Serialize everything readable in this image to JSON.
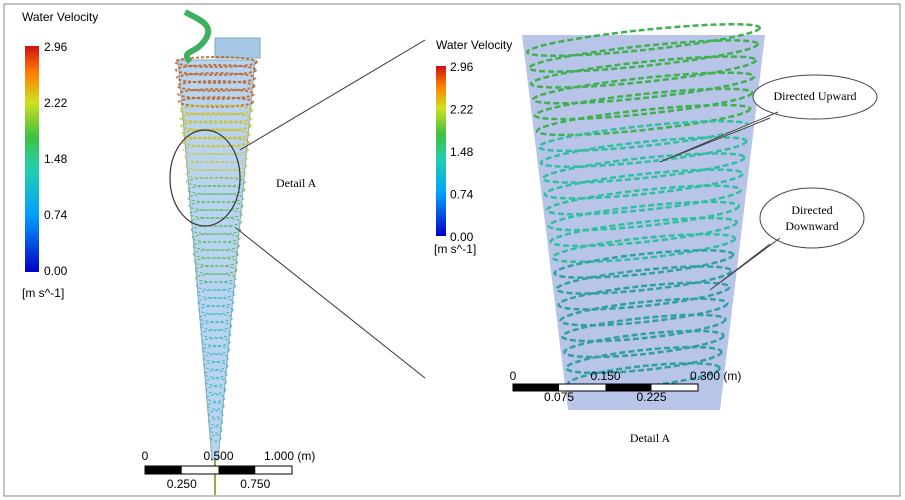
{
  "left_legend": {
    "title": "Water Velocity",
    "ticks": [
      "2.96",
      "2.22",
      "1.48",
      "0.74",
      "0.00"
    ],
    "unit": "[m s^-1]"
  },
  "left_label": "Detail A",
  "left_scale": {
    "top": [
      "0",
      "0.500",
      "1.000 (m)"
    ],
    "bottom": [
      "0.250",
      "0.750"
    ]
  },
  "detail_legend": {
    "title": "Water Velocity",
    "ticks": [
      "2.96",
      "2.22",
      "1.48",
      "0.74",
      "0.00"
    ],
    "unit": "[m s^-1]"
  },
  "detail_scale": {
    "top": [
      "0",
      "0.150",
      "0.300 (m)"
    ],
    "bottom": [
      "0.075",
      "0.225"
    ]
  },
  "callouts": [
    [
      "Directed Upward"
    ],
    [
      "Directed",
      "Downward"
    ]
  ],
  "caption": "Detail A"
}
